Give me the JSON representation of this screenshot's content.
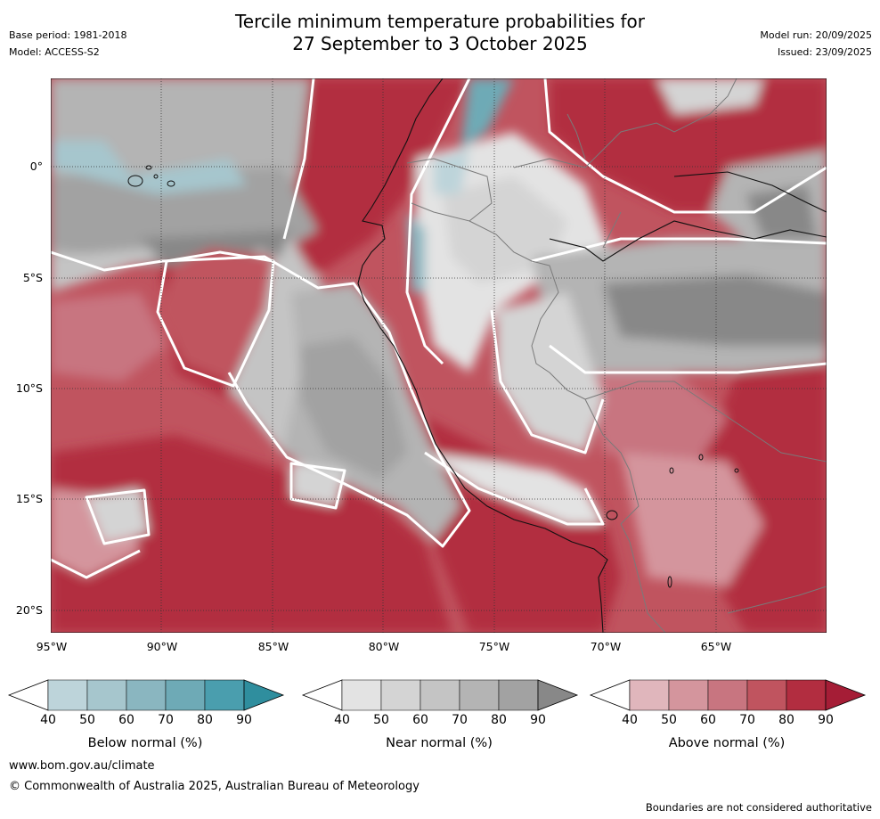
{
  "title": {
    "line1": "Tercile minimum temperature probabilities for",
    "line2": "27 September to 3 October 2025"
  },
  "meta_left": {
    "base_period": "Base period: 1981-2018",
    "model": "Model: ACCESS-S2"
  },
  "meta_right": {
    "model_run": "Model run: 20/09/2025",
    "issued": "Issued: 23/09/2025"
  },
  "map": {
    "latitude_labels": [
      "0°",
      "5°S",
      "10°S",
      "15°S",
      "20°S"
    ],
    "longitude_labels": [
      "95°W",
      "90°W",
      "85°W",
      "80°W",
      "75°W",
      "70°W",
      "65°W"
    ],
    "lat_range": [
      -21,
      4
    ],
    "lon_range": [
      -95,
      -60
    ]
  },
  "colorbars": [
    {
      "label": "Below normal (%)",
      "ticks": [
        "40",
        "50",
        "60",
        "70",
        "80",
        "90"
      ],
      "colors": [
        "#bdd4da",
        "#a6c6cd",
        "#8ab6c0",
        "#6eaab6",
        "#4a9eae",
        "#2f8e9e"
      ]
    },
    {
      "label": "Near normal (%)",
      "ticks": [
        "40",
        "50",
        "60",
        "70",
        "80",
        "90"
      ],
      "colors": [
        "#e3e3e3",
        "#d4d4d4",
        "#c4c4c4",
        "#b4b4b4",
        "#a2a2a2",
        "#888888"
      ]
    },
    {
      "label": "Above normal (%)",
      "ticks": [
        "40",
        "50",
        "60",
        "70",
        "80",
        "90"
      ],
      "colors": [
        "#e0b6bc",
        "#d4959d",
        "#c87580",
        "#c0545f",
        "#b22d40",
        "#a51d36"
      ]
    }
  ],
  "footer": {
    "url": "www.bom.gov.au/climate",
    "copyright": "© Commonwealth of Australia 2025, Australian Bureau of Meteorology",
    "disclaimer": "Boundaries are not considered authoritative"
  }
}
